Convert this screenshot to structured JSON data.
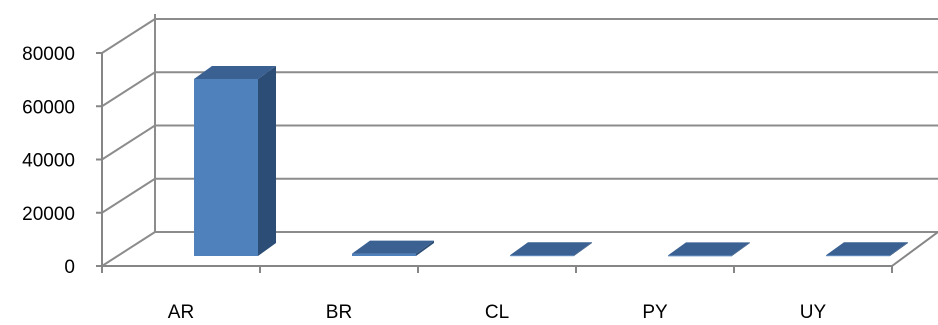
{
  "chart_data": {
    "type": "bar",
    "categories": [
      "AR",
      "BR",
      "CL",
      "PY",
      "UY"
    ],
    "values": [
      66500,
      900,
      300,
      250,
      300
    ],
    "ylim": [
      0,
      80000
    ],
    "yticks": [
      0,
      20000,
      40000,
      60000,
      80000
    ],
    "grid": true,
    "legend": "none",
    "colors": {
      "bar_front": "#4f81bd",
      "bar_side": "#2c4d75",
      "bar_top": "#3a6192",
      "grid": "#8c8c8c",
      "axis": "#868686"
    }
  }
}
